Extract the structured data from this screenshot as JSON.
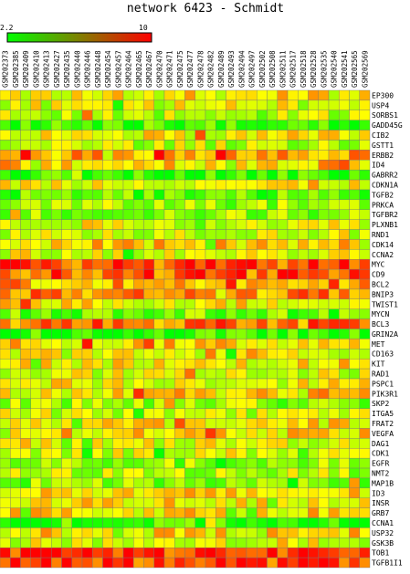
{
  "chart_data": {
    "type": "heatmap",
    "title": "network 6423 - Schmidt",
    "scale": {
      "min": 2.2,
      "max": 10,
      "min_label": "2.2",
      "max_label": "10",
      "low_color": "#00ff00",
      "high_color": "#ff0000"
    },
    "columns": [
      "GSM202373",
      "GSM202385",
      "GSM202409",
      "GSM202410",
      "GSM202413",
      "GSM202427",
      "GSM202435",
      "GSM202440",
      "GSM202446",
      "GSM202448",
      "GSM202454",
      "GSM202457",
      "GSM202464",
      "GSM202465",
      "GSM202467",
      "GSM202470",
      "GSM202471",
      "GSM202475",
      "GSM202477",
      "GSM202478",
      "GSM202482",
      "GSM202489",
      "GSM202493",
      "GSM202494",
      "GSM202497",
      "GSM202502",
      "GSM202508",
      "GSM202511",
      "GSM202517",
      "GSM202518",
      "GSM202528",
      "GSM202535",
      "GSM202540",
      "GSM202541",
      "GSM202565",
      "GSM202569"
    ],
    "rows": [
      "EP300",
      "USP4",
      "SORBS1",
      "GADD45G",
      "CIB2",
      "GSTT1",
      "ERBB2",
      "ID4",
      "GABRR2",
      "CDKN1A",
      "TGFB2",
      "PRKCA",
      "TGFBR2",
      "PLXNB1",
      "RND1",
      "CDK14",
      "CCNA2",
      "MYC",
      "CD9",
      "BCL2",
      "BNIP3",
      "TWIST1",
      "MYCN",
      "BCL3",
      "GRIN2A",
      "MET",
      "CD163",
      "KIT",
      "RAD1",
      "PSPC1",
      "PIK3R1",
      "SKP2",
      "ITGA5",
      "FRAT2",
      "VEGFA",
      "DAG1",
      "CDK1",
      "EGFR",
      "NMT2",
      "MAP1B",
      "ID3",
      "INSR",
      "GRB7",
      "CCNA1",
      "USP32",
      "GSK3B",
      "TOB1",
      "TGFB1I1"
    ],
    "row_levels": [
      6.2,
      5.6,
      5.0,
      3.2,
      6.0,
      5.2,
      7.2,
      6.8,
      3.0,
      6.2,
      3.6,
      4.6,
      4.4,
      5.8,
      5.6,
      6.6,
      5.8,
      8.8,
      8.6,
      7.4,
      7.8,
      6.2,
      4.0,
      8.2,
      2.8,
      6.6,
      5.8,
      6.2,
      5.6,
      6.0,
      6.4,
      4.6,
      5.4,
      6.4,
      6.6,
      5.8,
      5.6,
      4.4,
      5.0,
      4.2,
      6.4,
      6.4,
      6.6,
      3.0,
      6.4,
      5.6,
      9.2,
      9.0
    ]
  }
}
